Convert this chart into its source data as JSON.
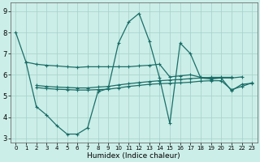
{
  "xlabel": "Humidex (Indice chaleur)",
  "xlim": [
    -0.5,
    23.5
  ],
  "ylim": [
    2.8,
    9.4
  ],
  "yticks": [
    3,
    4,
    5,
    6,
    7,
    8,
    9
  ],
  "xticks": [
    0,
    1,
    2,
    3,
    4,
    5,
    6,
    7,
    8,
    9,
    10,
    11,
    12,
    13,
    14,
    15,
    16,
    17,
    18,
    19,
    20,
    21,
    22,
    23
  ],
  "bg_color": "#cceee8",
  "grid_color": "#aad4ce",
  "line_color": "#1a6e68",
  "lines": [
    {
      "x": [
        0,
        1,
        2,
        3,
        4,
        5,
        6,
        7,
        8,
        9,
        10,
        11,
        12,
        13,
        14,
        15,
        16,
        17,
        18,
        19,
        20,
        21,
        22,
        23
      ],
      "y": [
        8.0,
        6.6,
        4.5,
        4.1,
        3.6,
        3.2,
        3.2,
        3.5,
        5.2,
        5.35,
        7.5,
        8.5,
        8.9,
        7.6,
        5.85,
        3.7,
        7.5,
        7.0,
        5.85,
        5.8,
        5.85,
        5.25,
        5.55,
        5.6
      ]
    },
    {
      "x": [
        2,
        3,
        4,
        5,
        6,
        7,
        8,
        9,
        10,
        11,
        12,
        13,
        14,
        15,
        16,
        17,
        18,
        19,
        20,
        21,
        22,
        23
      ],
      "y": [
        5.4,
        5.35,
        5.32,
        5.3,
        5.28,
        5.28,
        5.3,
        5.32,
        5.38,
        5.45,
        5.5,
        5.55,
        5.58,
        5.6,
        5.62,
        5.65,
        5.7,
        5.72,
        5.72,
        5.3,
        5.45,
        5.62
      ]
    },
    {
      "x": [
        2,
        3,
        4,
        5,
        6,
        7,
        8,
        9,
        10,
        11,
        12,
        13,
        14,
        15,
        16,
        17,
        18,
        19,
        20,
        21
      ],
      "y": [
        5.5,
        5.45,
        5.42,
        5.4,
        5.38,
        5.38,
        5.42,
        5.45,
        5.52,
        5.58,
        5.63,
        5.68,
        5.72,
        5.75,
        5.78,
        5.82,
        5.85,
        5.88,
        5.88,
        5.88
      ]
    },
    {
      "x": [
        1,
        2,
        3,
        4,
        5,
        6,
        7,
        8,
        9,
        10,
        11,
        12,
        13,
        14,
        15,
        16,
        17,
        18,
        19,
        20,
        21,
        22
      ],
      "y": [
        6.6,
        6.5,
        6.45,
        6.42,
        6.38,
        6.35,
        6.38,
        6.38,
        6.38,
        6.38,
        6.38,
        6.42,
        6.45,
        6.5,
        5.9,
        5.95,
        6.0,
        5.88,
        5.85,
        5.85,
        5.85,
        5.9
      ]
    }
  ]
}
